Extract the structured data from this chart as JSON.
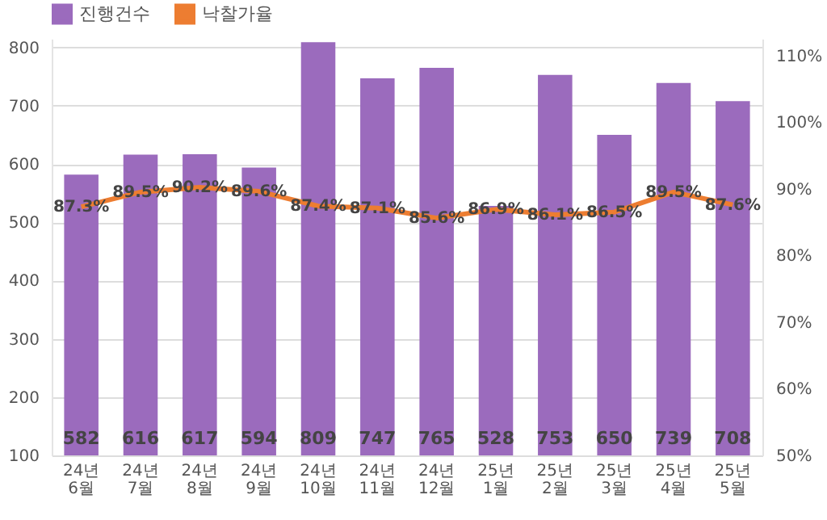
{
  "chart_data": {
    "type": "bar",
    "categories": [
      "24년 6월",
      "24년 7월",
      "24년 8월",
      "24년 9월",
      "24년 10월",
      "24년 11월",
      "24년 12월",
      "25년 1월",
      "25년 2월",
      "25년 3월",
      "25년 4월",
      "25년 5월"
    ],
    "series": [
      {
        "name": "진행건수",
        "type": "bar",
        "color": "#9b6bbd",
        "values": [
          582,
          616,
          617,
          594,
          809,
          747,
          765,
          528,
          753,
          650,
          739,
          708
        ],
        "value_labels": [
          "582",
          "616",
          "617",
          "594",
          "809",
          "747",
          "765",
          "528",
          "753",
          "650",
          "739",
          "708"
        ]
      },
      {
        "name": "낙찰가율",
        "type": "line",
        "axis": "y2",
        "color": "#ed7d31",
        "values": [
          87.3,
          89.5,
          90.2,
          89.6,
          87.4,
          87.1,
          85.6,
          86.9,
          86.1,
          86.5,
          89.5,
          87.6
        ],
        "value_labels": [
          "87.3%",
          "89.5%",
          "90.2%",
          "89.6%",
          "87.4%",
          "87.1%",
          "85.6%",
          "86.9%",
          "86.1%",
          "86.5%",
          "89.5%",
          "87.6%"
        ]
      }
    ],
    "ylim": [
      100,
      815
    ],
    "yticks": [
      100,
      200,
      300,
      400,
      500,
      600,
      700,
      800
    ],
    "y2lim": [
      50,
      112.5
    ],
    "y2ticks": [
      {
        "value": 50,
        "label": "50%"
      },
      {
        "value": 60,
        "label": "60%"
      },
      {
        "value": 70,
        "label": "70%"
      },
      {
        "value": 80,
        "label": "80%"
      },
      {
        "value": 90,
        "label": "90%"
      },
      {
        "value": 100,
        "label": "100%"
      },
      {
        "value": 110,
        "label": "110%"
      }
    ],
    "grid": "y",
    "legend": "top",
    "marker": "none",
    "line_style": "solid"
  }
}
